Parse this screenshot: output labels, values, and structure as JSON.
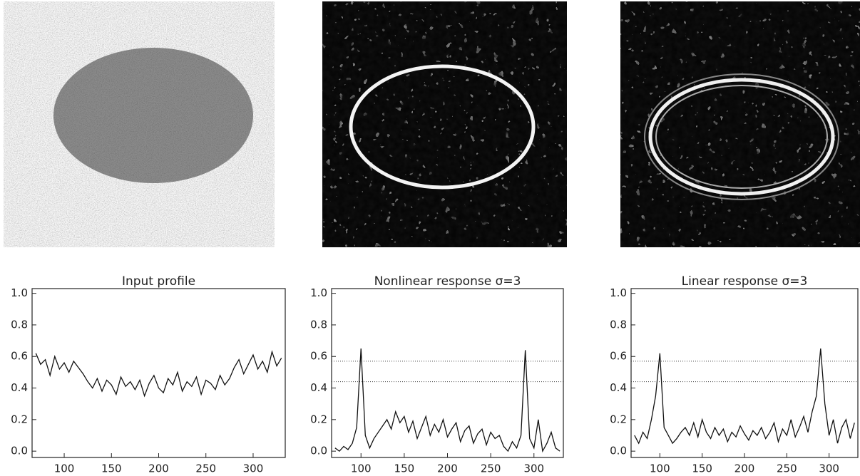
{
  "chart_data": [
    {
      "type": "line",
      "title": "Input profile",
      "color": "#111111",
      "x": [
        70,
        75,
        80,
        85,
        90,
        95,
        100,
        105,
        110,
        115,
        120,
        125,
        130,
        135,
        140,
        145,
        150,
        155,
        160,
        165,
        170,
        175,
        180,
        185,
        190,
        195,
        200,
        205,
        210,
        215,
        220,
        225,
        230,
        235,
        240,
        245,
        250,
        255,
        260,
        265,
        270,
        275,
        280,
        285,
        290,
        295,
        300,
        305,
        310,
        315,
        320,
        325,
        330
      ],
      "values": [
        0.62,
        0.55,
        0.58,
        0.48,
        0.6,
        0.52,
        0.56,
        0.5,
        0.57,
        0.53,
        0.49,
        0.44,
        0.4,
        0.46,
        0.38,
        0.45,
        0.42,
        0.36,
        0.47,
        0.41,
        0.44,
        0.39,
        0.45,
        0.35,
        0.43,
        0.48,
        0.4,
        0.37,
        0.46,
        0.42,
        0.5,
        0.38,
        0.44,
        0.41,
        0.47,
        0.36,
        0.45,
        0.43,
        0.39,
        0.48,
        0.42,
        0.46,
        0.53,
        0.58,
        0.49,
        0.55,
        0.61,
        0.52,
        0.57,
        0.5,
        0.63,
        0.54,
        0.59
      ],
      "xlim": [
        66,
        334
      ],
      "xticks": [
        100,
        150,
        200,
        250,
        300
      ],
      "ylim": [
        -0.04,
        1.03
      ],
      "yticks": [
        {
          "value": 0,
          "label": "0.0"
        },
        0.2,
        0.4,
        0.6,
        0.8,
        {
          "value": 1,
          "label": "1.0"
        }
      ]
    },
    {
      "type": "line",
      "title": "Nonlinear response σ=3",
      "color": "#111111",
      "x": [
        70,
        75,
        80,
        85,
        90,
        95,
        100,
        105,
        110,
        115,
        120,
        125,
        130,
        135,
        140,
        145,
        150,
        155,
        160,
        165,
        170,
        175,
        180,
        185,
        190,
        195,
        200,
        205,
        210,
        215,
        220,
        225,
        230,
        235,
        240,
        245,
        250,
        255,
        260,
        265,
        270,
        275,
        280,
        285,
        290,
        295,
        300,
        305,
        310,
        315,
        320,
        325,
        330
      ],
      "values": [
        0.02,
        0.0,
        0.03,
        0.01,
        0.05,
        0.15,
        0.65,
        0.1,
        0.02,
        0.08,
        0.12,
        0.16,
        0.2,
        0.14,
        0.25,
        0.18,
        0.22,
        0.12,
        0.19,
        0.08,
        0.15,
        0.22,
        0.1,
        0.17,
        0.12,
        0.2,
        0.09,
        0.14,
        0.18,
        0.06,
        0.13,
        0.16,
        0.05,
        0.11,
        0.14,
        0.04,
        0.12,
        0.08,
        0.1,
        0.03,
        0.0,
        0.06,
        0.02,
        0.1,
        0.64,
        0.08,
        0.02,
        0.2,
        0.0,
        0.05,
        0.12,
        0.02,
        0.0
      ],
      "reference_lines": [
        0.57,
        0.44
      ],
      "xlim": [
        66,
        334
      ],
      "xticks": [
        100,
        150,
        200,
        250,
        300
      ],
      "ylim": [
        -0.04,
        1.03
      ],
      "yticks": [
        {
          "value": 0,
          "label": "0.0"
        },
        0.2,
        0.4,
        0.6,
        0.8,
        {
          "value": 1,
          "label": "1.0"
        }
      ]
    },
    {
      "type": "line",
      "title": "Linear response σ=3",
      "color": "#111111",
      "x": [
        70,
        75,
        80,
        85,
        90,
        95,
        100,
        105,
        110,
        115,
        120,
        125,
        130,
        135,
        140,
        145,
        150,
        155,
        160,
        165,
        170,
        175,
        180,
        185,
        190,
        195,
        200,
        205,
        210,
        215,
        220,
        225,
        230,
        235,
        240,
        245,
        250,
        255,
        260,
        265,
        270,
        275,
        280,
        285,
        290,
        295,
        300,
        305,
        310,
        315,
        320,
        325,
        330
      ],
      "values": [
        0.1,
        0.05,
        0.12,
        0.08,
        0.2,
        0.35,
        0.62,
        0.15,
        0.1,
        0.05,
        0.08,
        0.12,
        0.15,
        0.1,
        0.18,
        0.09,
        0.2,
        0.12,
        0.08,
        0.15,
        0.1,
        0.14,
        0.06,
        0.12,
        0.09,
        0.16,
        0.11,
        0.07,
        0.13,
        0.1,
        0.15,
        0.08,
        0.12,
        0.18,
        0.06,
        0.14,
        0.1,
        0.2,
        0.09,
        0.15,
        0.22,
        0.12,
        0.25,
        0.35,
        0.65,
        0.3,
        0.1,
        0.2,
        0.05,
        0.15,
        0.2,
        0.08,
        0.18
      ],
      "reference_lines": [
        0.57,
        0.44
      ],
      "xlim": [
        66,
        334
      ],
      "xticks": [
        100,
        150,
        200,
        250,
        300
      ],
      "ylim": [
        -0.04,
        1.03
      ],
      "yticks": [
        {
          "value": 0,
          "label": "0.0"
        },
        0.2,
        0.4,
        0.6,
        0.8,
        {
          "value": 1,
          "label": "1.0"
        }
      ]
    }
  ]
}
